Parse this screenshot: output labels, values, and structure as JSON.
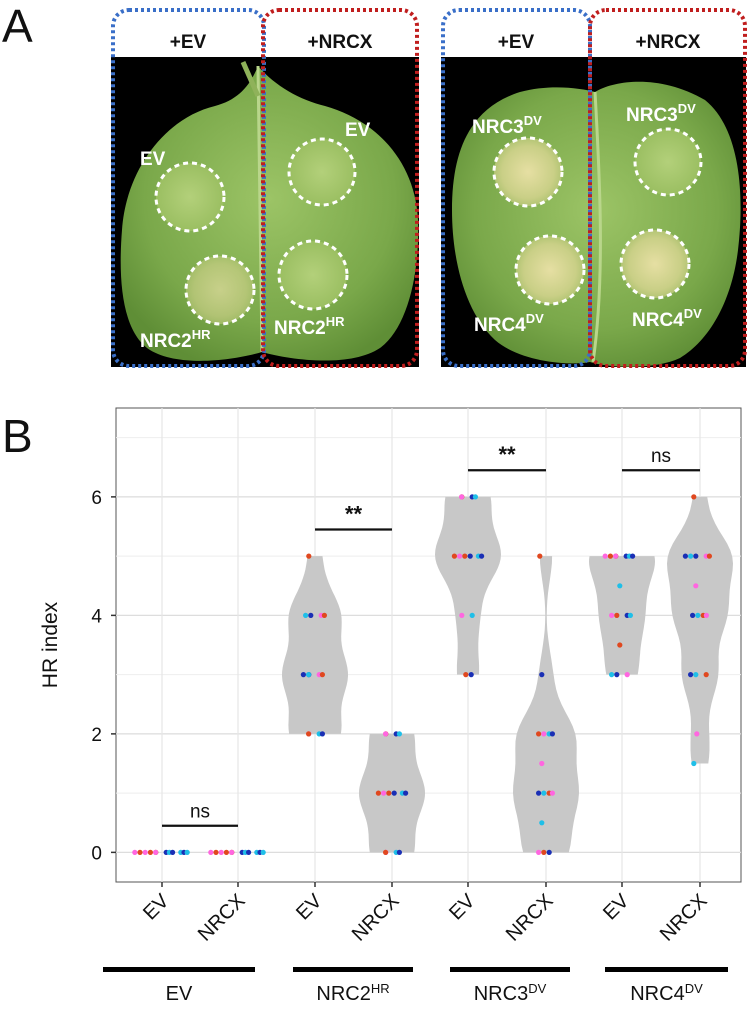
{
  "panel_a": {
    "letter": "A",
    "left_photo": {
      "headers": [
        "+EV",
        "+NRCX"
      ],
      "labels": [
        {
          "base": "EV",
          "sup": ""
        },
        {
          "base": "EV",
          "sup": ""
        },
        {
          "base": "NRC2",
          "sup": "HR"
        },
        {
          "base": "NRC2",
          "sup": "HR"
        }
      ]
    },
    "right_photo": {
      "headers": [
        "+EV",
        "+NRCX"
      ],
      "labels": [
        {
          "base": "NRC3",
          "sup": "DV"
        },
        {
          "base": "NRC3",
          "sup": "DV"
        },
        {
          "base": "NRC4",
          "sup": "DV"
        },
        {
          "base": "NRC4",
          "sup": "DV"
        }
      ]
    },
    "colors": {
      "ev_box": "#3a6fc8",
      "nrcx_box": "#c01e1e",
      "background": "#000000",
      "leaf": "#7fae4e"
    }
  },
  "panel_b": {
    "letter": "B",
    "chart_data": {
      "type": "violin",
      "ylabel": "HR index",
      "ylim": [
        -0.5,
        7.5
      ],
      "yticks": [
        0,
        2,
        4,
        6
      ],
      "grid": true,
      "categories": [
        "EV",
        "NRCX",
        "EV",
        "NRCX",
        "EV",
        "NRCX",
        "EV",
        "NRCX"
      ],
      "groups": [
        {
          "label": "EV",
          "sup": ""
        },
        {
          "label": "NRC2",
          "sup": "HR"
        },
        {
          "label": "NRC3",
          "sup": "DV"
        },
        {
          "label": "NRC4",
          "sup": "DV"
        }
      ],
      "series": [
        {
          "category": "EV",
          "group": "EV",
          "values": [
            0,
            0,
            0,
            0,
            0,
            0,
            0,
            0,
            0,
            0,
            0,
            0
          ],
          "range": [
            0,
            0
          ]
        },
        {
          "category": "NRCX",
          "group": "EV",
          "values": [
            0,
            0,
            0,
            0,
            0,
            0,
            0,
            0,
            0,
            0,
            0,
            0
          ],
          "range": [
            0,
            0
          ]
        },
        {
          "category": "EV",
          "group": "NRC2HR",
          "values": [
            5,
            4,
            4,
            4,
            4,
            3,
            3,
            3,
            3,
            3,
            2,
            2,
            2,
            2
          ],
          "range": [
            2,
            5
          ]
        },
        {
          "category": "NRCX",
          "group": "NRC2HR",
          "values": [
            2,
            2,
            2,
            2,
            1,
            1,
            1,
            1,
            1,
            1,
            0,
            0,
            0,
            0
          ],
          "range": [
            0,
            2
          ]
        },
        {
          "category": "EV",
          "group": "NRC3DV",
          "values": [
            6,
            6,
            6,
            6,
            5,
            5,
            5,
            5,
            5,
            5,
            4,
            4,
            3,
            3
          ],
          "range": [
            3,
            6
          ]
        },
        {
          "category": "NRCX",
          "group": "NRC3DV",
          "values": [
            5,
            3,
            2,
            2,
            2,
            2,
            1.5,
            1,
            1,
            1,
            1,
            0.5,
            0,
            0,
            0
          ],
          "range": [
            0,
            5
          ]
        },
        {
          "category": "EV",
          "group": "NRC4DV",
          "values": [
            5,
            5,
            5,
            5,
            5,
            5,
            5,
            4.5,
            4,
            4,
            4,
            4,
            3.5,
            3,
            3,
            3
          ],
          "range": [
            3,
            5
          ]
        },
        {
          "category": "NRCX",
          "group": "NRC4DV",
          "values": [
            6,
            5,
            5,
            5,
            5,
            5,
            4.5,
            4,
            4,
            4,
            4,
            3,
            3,
            3,
            2,
            1.5
          ],
          "range": [
            1.5,
            6
          ]
        }
      ],
      "point_colors": [
        "#e0481f",
        "#1a2fb5",
        "#ff66e0",
        "#1fbfe8"
      ],
      "violin_color": "#c8c8c8",
      "significance": [
        {
          "pair": [
            0,
            1
          ],
          "y": 0.45,
          "label": "ns"
        },
        {
          "pair": [
            2,
            3
          ],
          "y": 5.45,
          "label": "**"
        },
        {
          "pair": [
            4,
            5
          ],
          "y": 6.45,
          "label": "**"
        },
        {
          "pair": [
            6,
            7
          ],
          "y": 6.45,
          "label": "ns"
        }
      ]
    }
  }
}
